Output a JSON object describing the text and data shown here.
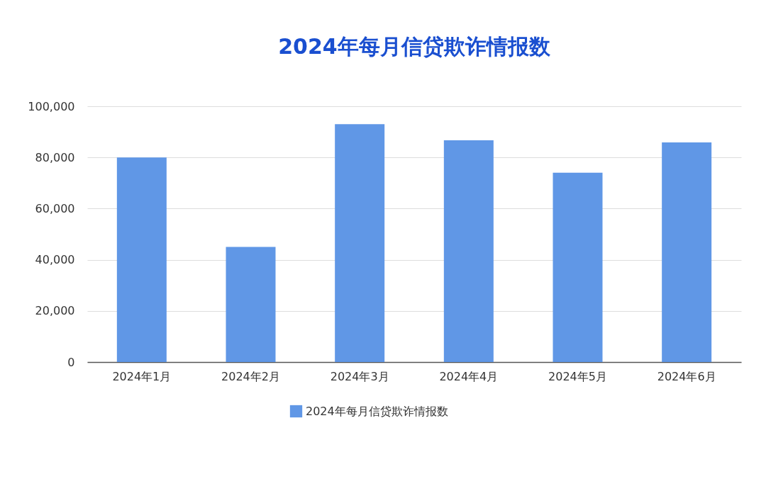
{
  "chart_data": {
    "type": "bar",
    "title": "2024年每月信贷欺诈情报数",
    "categories": [
      "2024年1月",
      "2024年2月",
      "2024年3月",
      "2024年4月",
      "2024年5月",
      "2024年6月"
    ],
    "series": [
      {
        "name": "2024年每月信贷欺诈情报数",
        "color": "#6097e6",
        "values": [
          80000,
          45000,
          93000,
          86700,
          74000,
          85900
        ]
      }
    ],
    "ylim": [
      0,
      100000
    ],
    "yticks": [
      0,
      {
        "value": 20000,
        "label": "20,000"
      },
      {
        "value": 40000,
        "label": "40,000"
      },
      {
        "value": 60000,
        "label": "60,000"
      },
      {
        "value": 80000,
        "label": "80,000"
      },
      {
        "value": 100000,
        "label": "100,000"
      }
    ],
    "grid": "y",
    "legend": "bottom"
  }
}
